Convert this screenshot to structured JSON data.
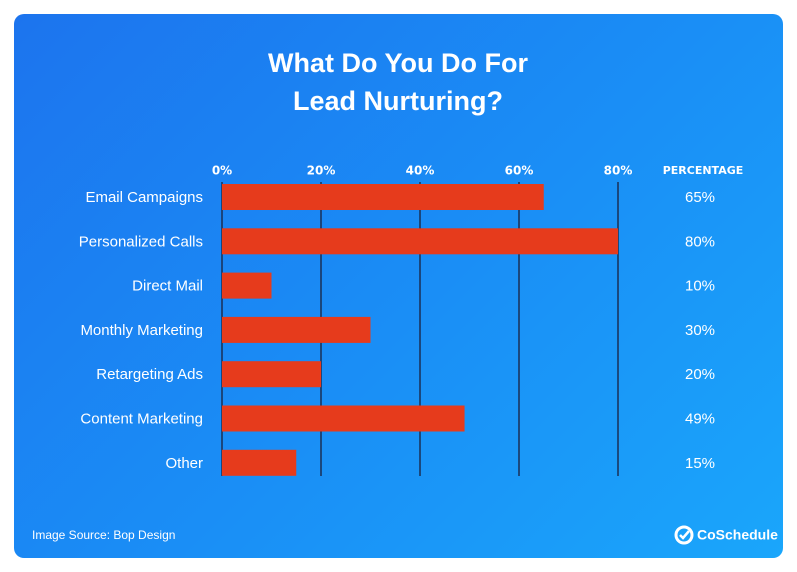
{
  "chart_data": {
    "type": "bar",
    "orientation": "horizontal",
    "title": "What Do You Do For Lead Nurturing?",
    "categories": [
      "Email Campaigns",
      "Personalized Calls",
      "Direct Mail",
      "Monthly Marketing",
      "Retargeting Ads",
      "Content Marketing",
      "Other"
    ],
    "values": [
      65,
      80,
      10,
      30,
      20,
      49,
      15
    ],
    "value_labels": [
      "65%",
      "80%",
      "10%",
      "30%",
      "20%",
      "49%",
      "15%"
    ],
    "value_column_header": "PERCENTAGE",
    "color": "#e63b1c",
    "xlim": [
      0,
      80
    ],
    "xticks": [
      {
        "value": 0,
        "label": "0%"
      },
      {
        "value": 20,
        "label": "20%"
      },
      {
        "value": 40,
        "label": "40%"
      },
      {
        "value": 60,
        "label": "60%"
      },
      {
        "value": 80,
        "label": "80%"
      }
    ],
    "grid": true,
    "source": "Image Source: Bop Design",
    "brand": "CoSchedule"
  }
}
